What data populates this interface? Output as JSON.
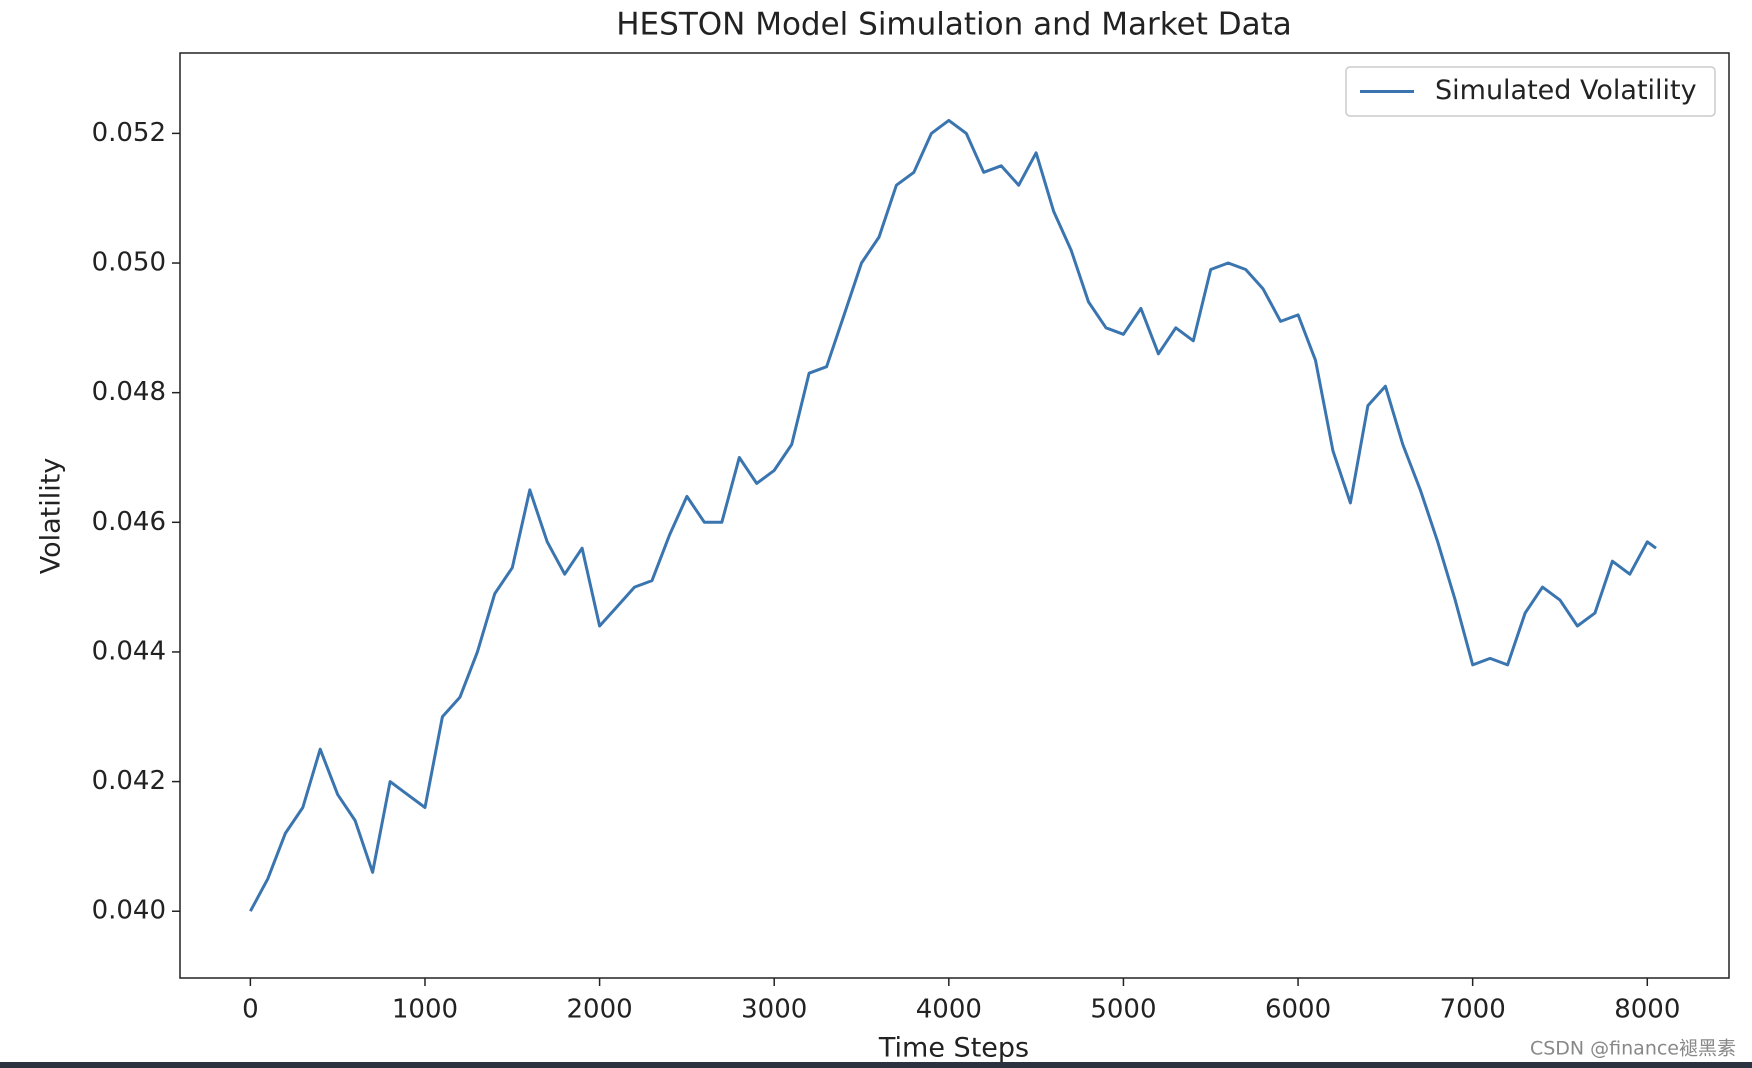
{
  "chart_data": {
    "type": "line",
    "title": "HESTON Model Simulation and Market Data",
    "xlabel": "Time Steps",
    "ylabel": "Volatility",
    "watermark": "CSDN @finance褪黑素",
    "legend": "upper right",
    "x": [
      0,
      100,
      200,
      300,
      400,
      500,
      600,
      700,
      800,
      900,
      1000,
      1100,
      1200,
      1300,
      1400,
      1500,
      1600,
      1700,
      1800,
      1900,
      2000,
      2100,
      2200,
      2300,
      2400,
      2500,
      2600,
      2700,
      2800,
      2900,
      3000,
      3100,
      3200,
      3300,
      3400,
      3500,
      3600,
      3700,
      3800,
      3900,
      4000,
      4100,
      4200,
      4300,
      4400,
      4500,
      4600,
      4700,
      4800,
      4900,
      5000,
      5100,
      5200,
      5300,
      5400,
      5500,
      5600,
      5700,
      5800,
      5900,
      6000,
      6100,
      6200,
      6300,
      6400,
      6500,
      6600,
      6700,
      6800,
      6900,
      7000,
      7100,
      7200,
      7300,
      7400,
      7500,
      7600,
      7700,
      7800,
      7900,
      8000,
      8050
    ],
    "series": [
      {
        "name": "Simulated Volatility",
        "color": "#3a75b0",
        "values": [
          0.04,
          0.0405,
          0.0412,
          0.0416,
          0.0425,
          0.0418,
          0.0414,
          0.0406,
          0.042,
          0.0418,
          0.0416,
          0.043,
          0.0433,
          0.044,
          0.0449,
          0.0453,
          0.0465,
          0.0457,
          0.0452,
          0.0456,
          0.0444,
          0.0447,
          0.045,
          0.0451,
          0.0458,
          0.0464,
          0.046,
          0.046,
          0.047,
          0.0466,
          0.0468,
          0.0472,
          0.0483,
          0.0484,
          0.0492,
          0.05,
          0.0504,
          0.0512,
          0.0514,
          0.052,
          0.0522,
          0.052,
          0.0514,
          0.0515,
          0.0512,
          0.0517,
          0.0508,
          0.0502,
          0.0494,
          0.049,
          0.0489,
          0.0493,
          0.0486,
          0.049,
          0.0488,
          0.0499,
          0.05,
          0.0499,
          0.0496,
          0.0491,
          0.0492,
          0.0485,
          0.0471,
          0.0463,
          0.0478,
          0.0481,
          0.0472,
          0.0465,
          0.0457,
          0.0448,
          0.0438,
          0.0439,
          0.0438,
          0.0446,
          0.045,
          0.0448,
          0.0444,
          0.0446,
          0.0454,
          0.0452,
          0.0457,
          0.0456
        ]
      }
    ],
    "xlim": [
      -403,
      8468
    ],
    "ylim": [
      0.03897,
      0.05324
    ],
    "xticks": [
      0,
      1000,
      2000,
      3000,
      4000,
      5000,
      6000,
      7000,
      8000
    ],
    "yticks": [
      {
        "value": 0.04,
        "label": "0.040"
      },
      0.042,
      0.044,
      0.046,
      0.048,
      {
        "value": 0.05,
        "label": "0.050"
      },
      0.052
    ]
  }
}
